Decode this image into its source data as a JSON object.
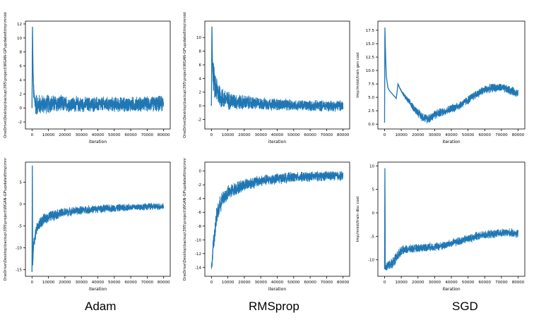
{
  "captions": [
    "Adam",
    "RMSprop",
    "SGD"
  ],
  "colors": {
    "series": "#1f77b4",
    "axis": "#000000"
  },
  "chart_data": [
    {
      "type": "line",
      "optimizer": "Adam",
      "metric": "gen",
      "xlabel": "iteration",
      "ylabel": "OneDrive\\Desktop\\backup\\395\\project\\WGAN-GP\\updated\\tmp\\mnist",
      "xlim": [
        -4000,
        84000
      ],
      "ylim": [
        -3.0,
        12.4
      ],
      "xticks": [
        0,
        10000,
        20000,
        30000,
        40000,
        50000,
        60000,
        70000,
        80000
      ],
      "xtick_labels": [
        "0",
        "10000",
        "20000",
        "30000",
        "40000",
        "50000",
        "60000",
        "70000",
        "80000"
      ],
      "yticks": [
        -2,
        0,
        2,
        4,
        6,
        8,
        10,
        12
      ],
      "ytick_labels": [
        "-2",
        "0",
        "2",
        "4",
        "6",
        "8",
        "10",
        "12"
      ],
      "series": [
        {
          "x": [
            0,
            300,
            600,
            1000,
            2000,
            3000,
            5000,
            7000,
            10000,
            15000,
            20000,
            25000,
            30000,
            35000,
            40000,
            45000,
            50000,
            55000,
            60000,
            65000,
            70000,
            75000,
            80000
          ],
          "center": [
            0.0,
            11.6,
            5.5,
            2.0,
            0.6,
            0.5,
            0.5,
            0.5,
            0.6,
            0.6,
            0.55,
            0.5,
            0.5,
            0.5,
            0.5,
            0.5,
            0.5,
            0.5,
            0.5,
            0.55,
            0.55,
            0.6,
            0.6
          ],
          "amp": [
            0.0,
            0.0,
            0.0,
            2.0,
            1.8,
            1.7,
            1.6,
            1.5,
            1.5,
            1.4,
            1.3,
            1.25,
            1.2,
            1.2,
            1.2,
            1.2,
            1.2,
            1.2,
            1.2,
            1.2,
            1.2,
            1.25,
            1.3
          ]
        }
      ]
    },
    {
      "type": "line",
      "optimizer": "RMSprop",
      "metric": "gen",
      "xlabel": "iteration",
      "ylabel": "OneDrive\\Desktop\\backup\\395\\project\\WGAN-GP\\updated\\tmp\\mnist",
      "xlim": [
        -4000,
        84000
      ],
      "ylim": [
        -3.4,
        12.4
      ],
      "xticks": [
        0,
        10000,
        20000,
        30000,
        40000,
        50000,
        60000,
        70000,
        80000
      ],
      "xtick_labels": [
        "0",
        "10000",
        "20000",
        "30000",
        "40000",
        "50000",
        "60000",
        "70000",
        "80000"
      ],
      "yticks": [
        -2,
        0,
        2,
        4,
        6,
        8,
        10
      ],
      "ytick_labels": [
        "-2",
        "0",
        "2",
        "4",
        "6",
        "8",
        "10"
      ],
      "series": [
        {
          "x": [
            0,
            300,
            600,
            1000,
            2000,
            4000,
            6000,
            10000,
            15000,
            20000,
            30000,
            40000,
            50000,
            60000,
            70000,
            80000
          ],
          "center": [
            0.0,
            11.6,
            6.5,
            4.5,
            3.0,
            2.0,
            1.2,
            0.8,
            0.6,
            0.5,
            0.3,
            0.2,
            0.1,
            0.0,
            0.0,
            0.0
          ],
          "amp": [
            0.0,
            0.0,
            0.0,
            2.5,
            2.5,
            2.2,
            1.8,
            1.5,
            1.3,
            1.2,
            1.0,
            1.0,
            0.9,
            0.9,
            0.9,
            0.9
          ]
        }
      ]
    },
    {
      "type": "line",
      "optimizer": "SGD",
      "metric": "gen",
      "xlabel": "iteration",
      "ylabel": "tmp/mnist/train gen cost",
      "xlim": [
        -4000,
        84000
      ],
      "ylim": [
        -0.9,
        19.2
      ],
      "xticks": [
        0,
        10000,
        20000,
        30000,
        40000,
        50000,
        60000,
        70000,
        80000
      ],
      "xtick_labels": [
        "0",
        "10000",
        "20000",
        "30000",
        "40000",
        "50000",
        "60000",
        "70000",
        "80000"
      ],
      "yticks": [
        0.0,
        2.5,
        5.0,
        7.5,
        10.0,
        12.5,
        15.0,
        17.5
      ],
      "ytick_labels": [
        "0.0",
        "2.5",
        "5.0",
        "7.5",
        "10.0",
        "12.5",
        "15.0",
        "17.5"
      ],
      "series": [
        {
          "x": [
            0,
            200,
            500,
            1000,
            2000,
            3000,
            5000,
            7000,
            7500,
            8000,
            9000,
            10000,
            12000,
            15000,
            18000,
            20000,
            22000,
            25000,
            28000,
            30000,
            35000,
            40000,
            45000,
            50000,
            55000,
            60000,
            65000,
            70000,
            75000,
            80000
          ],
          "center": [
            0.3,
            18.0,
            14.0,
            9.0,
            6.8,
            6.2,
            5.5,
            4.8,
            6.0,
            7.5,
            6.8,
            6.2,
            5.2,
            4.0,
            2.8,
            2.2,
            1.5,
            1.0,
            1.3,
            1.8,
            2.3,
            2.9,
            3.5,
            4.5,
            5.6,
            6.4,
            6.8,
            6.8,
            6.3,
            5.8
          ],
          "amp": [
            0.0,
            0.0,
            0.0,
            0.0,
            0.0,
            0.0,
            0.0,
            0.0,
            0.0,
            0.0,
            0.2,
            0.3,
            0.5,
            0.7,
            0.8,
            0.9,
            1.0,
            1.0,
            1.0,
            1.0,
            0.9,
            0.9,
            0.9,
            0.9,
            0.9,
            0.9,
            0.9,
            0.9,
            0.9,
            0.9
          ]
        }
      ]
    },
    {
      "type": "line",
      "optimizer": "Adam",
      "metric": "disc",
      "xlabel": "iteration",
      "ylabel": "OneDrive\\Desktop\\backup\\395\\project\\WGAN-GP\\updated\\tmp\\mnr",
      "xlim": [
        -4000,
        84000
      ],
      "ylim": [
        -16.5,
        9.6
      ],
      "xticks": [
        0,
        10000,
        20000,
        30000,
        40000,
        50000,
        60000,
        70000,
        80000
      ],
      "xtick_labels": [
        "0",
        "10000",
        "20000",
        "30000",
        "40000",
        "50000",
        "60000",
        "70000",
        "80000"
      ],
      "yticks": [
        -15,
        -10,
        -5,
        0,
        5
      ],
      "ytick_labels": [
        "-15",
        "-10",
        "-5",
        "0",
        "5"
      ],
      "series": [
        {
          "x": [
            0,
            200,
            400,
            700,
            1000,
            2000,
            3000,
            5000,
            7000,
            10000,
            15000,
            20000,
            25000,
            30000,
            40000,
            50000,
            60000,
            70000,
            80000
          ],
          "center": [
            -15.5,
            8.8,
            -14.0,
            -11.0,
            -9.0,
            -7.0,
            -5.5,
            -4.3,
            -3.6,
            -2.9,
            -2.3,
            -1.9,
            -1.6,
            -1.4,
            -1.1,
            -0.9,
            -0.7,
            -0.6,
            -0.5
          ],
          "amp": [
            0.0,
            0.0,
            0.0,
            1.2,
            1.5,
            1.6,
            1.6,
            1.5,
            1.4,
            1.4,
            1.3,
            1.2,
            1.1,
            1.1,
            1.0,
            1.0,
            0.9,
            0.9,
            0.9
          ]
        }
      ]
    },
    {
      "type": "line",
      "optimizer": "RMSprop",
      "metric": "disc",
      "xlabel": "iteration",
      "ylabel": "OneDrive\\Desktop\\backup\\395\\project\\WGAN-GP\\updated\\tmp\\mnr",
      "xlim": [
        -4000,
        84000
      ],
      "ylim": [
        -15.3,
        1.3
      ],
      "xticks": [
        0,
        10000,
        20000,
        30000,
        40000,
        50000,
        60000,
        70000,
        80000
      ],
      "xtick_labels": [
        "0",
        "10000",
        "20000",
        "30000",
        "40000",
        "50000",
        "60000",
        "70000",
        "80000"
      ],
      "yticks": [
        -14,
        -12,
        -10,
        -8,
        -6,
        -4,
        -2,
        0
      ],
      "ytick_labels": [
        "-14",
        "-12",
        "-10",
        "-8",
        "-6",
        "-4",
        "-2",
        "0"
      ],
      "series": [
        {
          "x": [
            0,
            500,
            1000,
            2000,
            3000,
            4000,
            5000,
            7000,
            10000,
            15000,
            20000,
            25000,
            30000,
            40000,
            50000,
            60000,
            70000,
            80000
          ],
          "center": [
            -14.0,
            -13.0,
            -11.0,
            -9.0,
            -7.0,
            -5.8,
            -5.0,
            -4.0,
            -3.2,
            -2.5,
            -2.0,
            -1.7,
            -1.4,
            -1.1,
            -0.9,
            -0.8,
            -0.7,
            -0.7
          ],
          "amp": [
            0.5,
            1.0,
            1.5,
            1.5,
            1.5,
            1.5,
            1.4,
            1.3,
            1.2,
            1.1,
            1.0,
            1.0,
            0.9,
            0.9,
            0.8,
            0.8,
            0.8,
            0.8
          ]
        }
      ]
    },
    {
      "type": "line",
      "optimizer": "SGD",
      "metric": "disc",
      "xlabel": "iteration",
      "ylabel": "tmp/mnist/train disc cost",
      "xlim": [
        -4000,
        84000
      ],
      "ylim": [
        -13.5,
        10.8
      ],
      "xticks": [
        0,
        10000,
        20000,
        30000,
        40000,
        50000,
        60000,
        70000,
        80000
      ],
      "xtick_labels": [
        "0",
        "10000",
        "20000",
        "30000",
        "40000",
        "50000",
        "60000",
        "70000",
        "80000"
      ],
      "yticks": [
        -10,
        -5,
        0,
        5,
        10
      ],
      "ytick_labels": [
        "-10",
        "-5",
        "0",
        "5",
        "10"
      ],
      "series": [
        {
          "x": [
            0,
            200,
            400,
            1000,
            3000,
            5000,
            8000,
            10000,
            15000,
            20000,
            25000,
            30000,
            35000,
            40000,
            45000,
            50000,
            55000,
            60000,
            65000,
            70000,
            75000,
            80000
          ],
          "center": [
            -12.0,
            9.5,
            -12.0,
            -11.5,
            -11.0,
            -10.5,
            -9.0,
            -8.0,
            -7.7,
            -7.5,
            -7.3,
            -7.2,
            -7.0,
            -6.5,
            -6.0,
            -5.5,
            -5.0,
            -4.7,
            -4.5,
            -4.3,
            -4.2,
            -4.5
          ],
          "amp": [
            0.0,
            0.0,
            0.0,
            1.0,
            1.2,
            1.4,
            1.2,
            1.1,
            1.0,
            1.0,
            1.0,
            1.0,
            1.0,
            1.0,
            1.0,
            1.0,
            1.0,
            1.0,
            1.0,
            1.0,
            1.0,
            1.0
          ]
        }
      ]
    }
  ]
}
